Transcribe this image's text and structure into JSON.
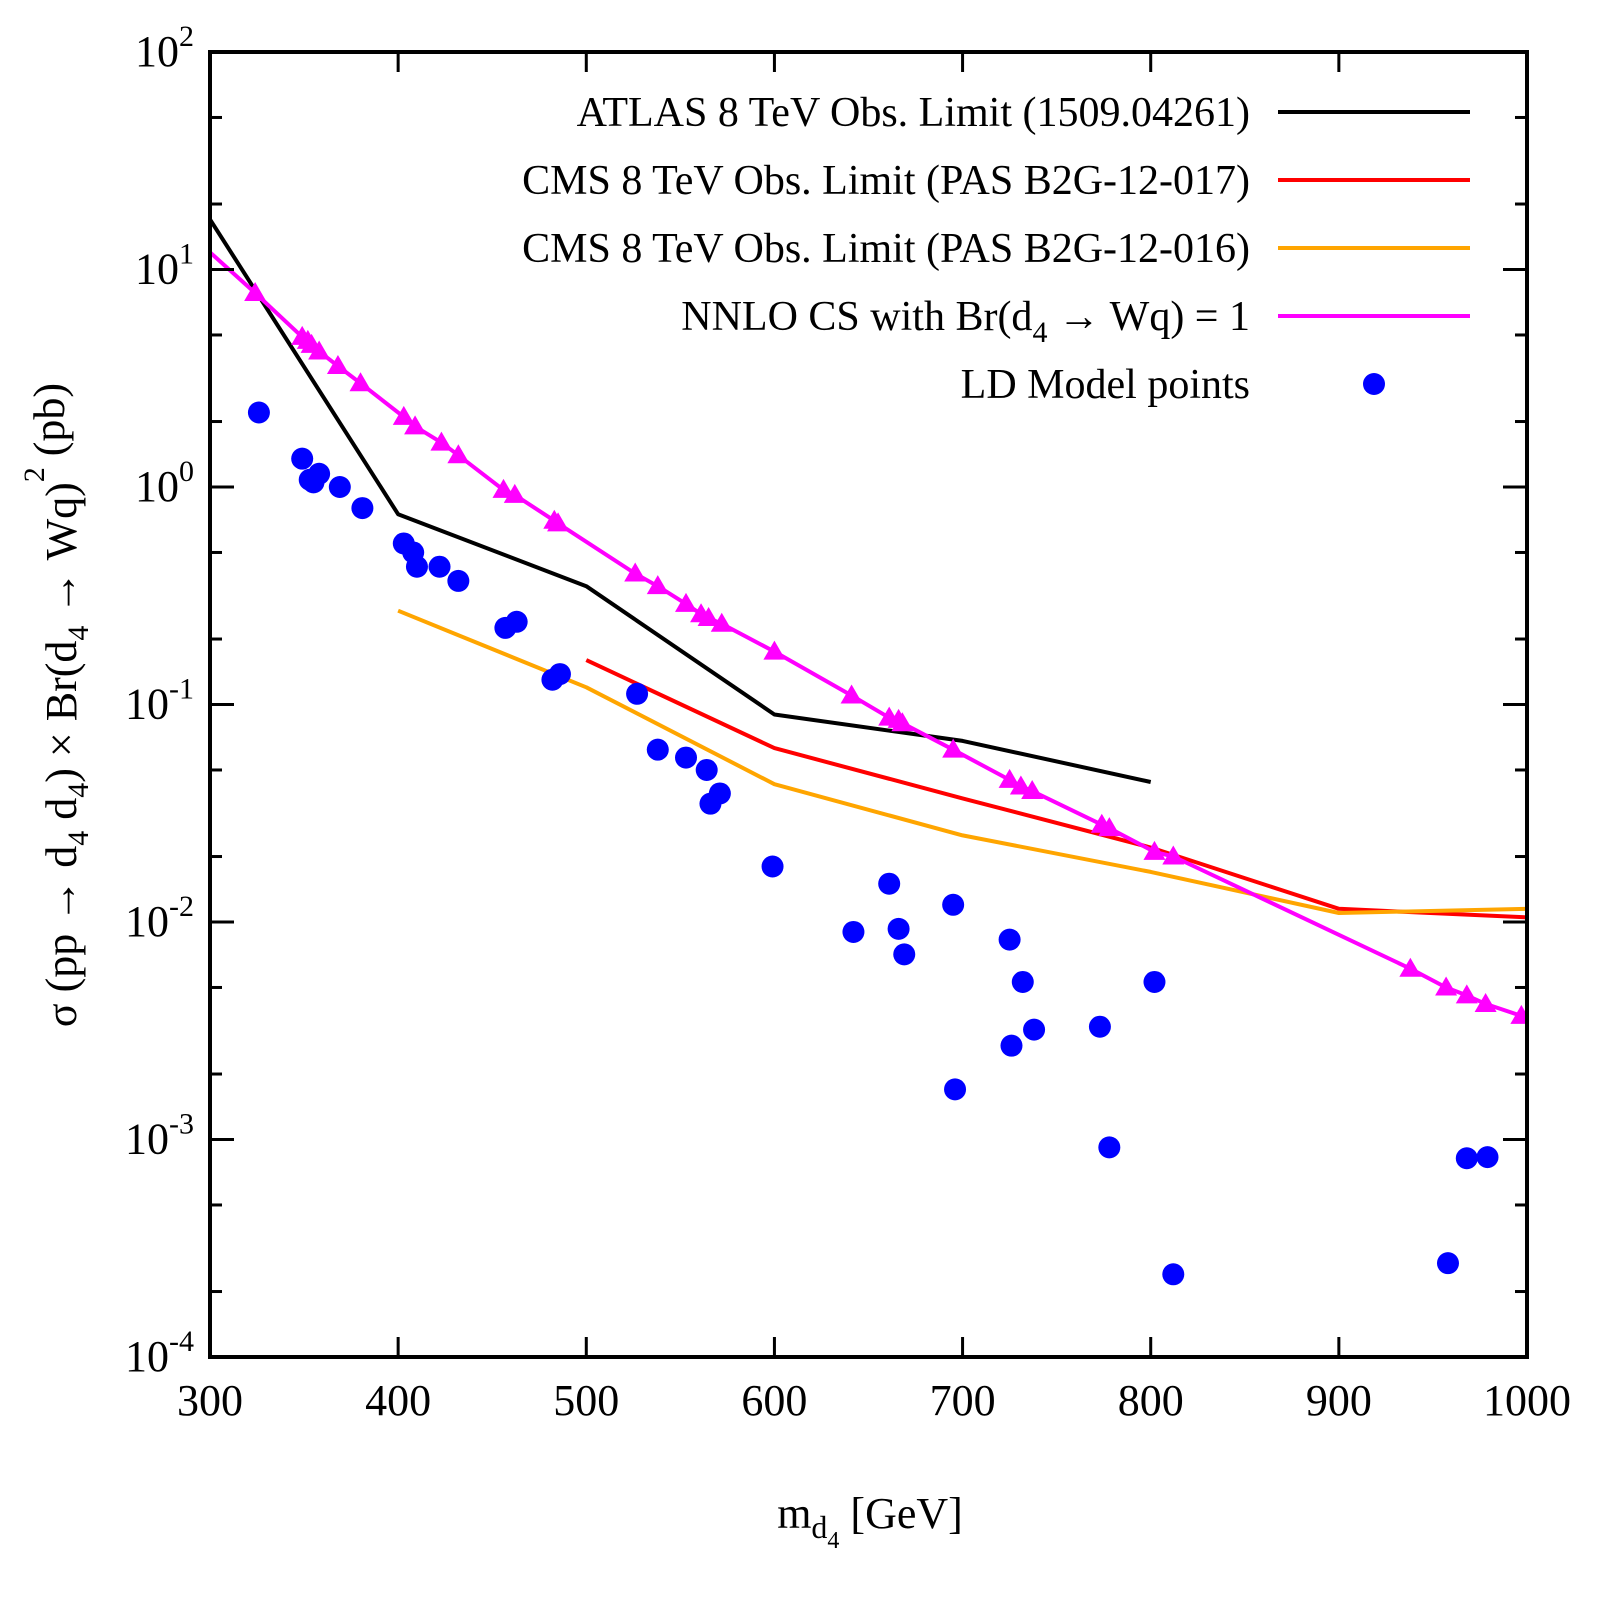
{
  "chart_data": {
    "type": "line",
    "title": "",
    "xlabel": {
      "base": "m",
      "sub": "d",
      "subsub": "4",
      "suffix": " [GeV]"
    },
    "ylabel_parts": [
      "σ (pp ",
      "→",
      " d",
      "4",
      " d",
      "4",
      ") × Br(d",
      "4",
      " → Wq)",
      "2",
      " (pb)"
    ],
    "xlim": [
      300,
      1000
    ],
    "ylim": [
      0.0001,
      100
    ],
    "yscale": "log",
    "grid": false,
    "legend_position": "top-right",
    "x_ticks": [
      {
        "value": 300,
        "label": "300"
      },
      {
        "value": 400,
        "label": "400"
      },
      {
        "value": 500,
        "label": "500"
      },
      {
        "value": 600,
        "label": "600"
      },
      {
        "value": 700,
        "label": "700"
      },
      {
        "value": 800,
        "label": "800"
      },
      {
        "value": 900,
        "label": "900"
      },
      {
        "value": 1000,
        "label": "1000"
      }
    ],
    "y_ticks": [
      {
        "value": 100,
        "base": "10",
        "exp": "2"
      },
      {
        "value": 10,
        "base": "10",
        "exp": "1"
      },
      {
        "value": 1,
        "base": "10",
        "exp": "0"
      },
      {
        "value": 0.1,
        "base": "10",
        "exp": "-1"
      },
      {
        "value": 0.01,
        "base": "10",
        "exp": "-2"
      },
      {
        "value": 0.001,
        "base": "10",
        "exp": "-3"
      },
      {
        "value": 0.0001,
        "base": "10",
        "exp": "-4"
      }
    ],
    "series": [
      {
        "name": "atlas",
        "legend_parts": [
          "ATLAS 8 TeV Obs. Limit (1509.04261)"
        ],
        "color": "#000000",
        "style": "line",
        "x": [
          300,
          400,
          500,
          600,
          700,
          800
        ],
        "y": [
          17,
          0.75,
          0.35,
          0.09,
          0.068,
          0.044
        ]
      },
      {
        "name": "cms-017",
        "legend_parts": [
          "CMS 8 TeV Obs. Limit (PAS B2G-12-017)"
        ],
        "color": "#ff0000",
        "style": "line",
        "x": [
          500,
          600,
          700,
          800,
          900,
          1000
        ],
        "y": [
          0.16,
          0.063,
          0.037,
          0.022,
          0.0115,
          0.0105
        ]
      },
      {
        "name": "cms-016",
        "legend_parts": [
          "CMS 8 TeV Obs. Limit (PAS B2G-12-016)"
        ],
        "color": "#ffa500",
        "style": "line",
        "x": [
          400,
          500,
          600,
          700,
          800,
          900,
          1000
        ],
        "y": [
          0.27,
          0.12,
          0.043,
          0.025,
          0.017,
          0.011,
          0.0115
        ]
      },
      {
        "name": "nnlo-cs",
        "legend_parts": [
          "NNLO CS with Br(d",
          "4",
          " → Wq) = 1"
        ],
        "color": "#ff00ff",
        "style": "line+triangle",
        "x": [
          300,
          324,
          349,
          352,
          354,
          358,
          368,
          380,
          403,
          409,
          423,
          432,
          456,
          462,
          483,
          485,
          526,
          538,
          553,
          561,
          565,
          572,
          600,
          641,
          661,
          666,
          668,
          695,
          725,
          731,
          737,
          774,
          778,
          802,
          812,
          938,
          957,
          968,
          978,
          997
        ],
        "y": [
          12,
          7.8,
          4.9,
          4.7,
          4.5,
          4.2,
          3.6,
          3.0,
          2.1,
          1.9,
          1.6,
          1.4,
          0.97,
          0.92,
          0.7,
          0.68,
          0.4,
          0.35,
          0.29,
          0.26,
          0.25,
          0.235,
          0.175,
          0.11,
          0.087,
          0.085,
          0.082,
          0.062,
          0.045,
          0.042,
          0.04,
          0.028,
          0.027,
          0.021,
          0.02,
          0.0061,
          0.005,
          0.0046,
          0.0042,
          0.0037
        ]
      },
      {
        "name": "ld-model",
        "legend_parts": [
          "LD Model points"
        ],
        "color": "#0000ff",
        "style": "points",
        "x": [
          326,
          349,
          353,
          355,
          358,
          369,
          381,
          403,
          408,
          410,
          422,
          432,
          457,
          463,
          482,
          486,
          527,
          538,
          553,
          564,
          566,
          571,
          599,
          642,
          661,
          666,
          669,
          695,
          696,
          725,
          726,
          732,
          738,
          773,
          778,
          802,
          812,
          958,
          968,
          979
        ],
        "y": [
          2.2,
          1.35,
          1.08,
          1.05,
          1.15,
          1.0,
          0.8,
          0.55,
          0.5,
          0.43,
          0.43,
          0.37,
          0.225,
          0.24,
          0.13,
          0.138,
          0.112,
          0.062,
          0.057,
          0.05,
          0.035,
          0.039,
          0.018,
          0.009,
          0.015,
          0.0093,
          0.0071,
          0.012,
          0.0017,
          0.0083,
          0.0027,
          0.0053,
          0.0032,
          0.0033,
          0.00092,
          0.0053,
          0.00024,
          0.00027,
          0.00082,
          0.00083
        ]
      }
    ]
  }
}
